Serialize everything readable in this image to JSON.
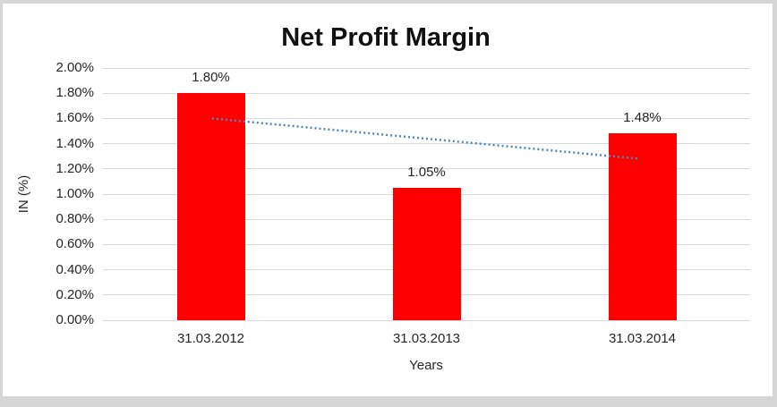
{
  "window": {
    "background": "#ffffff",
    "frame_border_color": "#d6d6d6"
  },
  "chart_data": {
    "type": "bar",
    "title": "Net Profit Margin",
    "xlabel": "Years",
    "ylabel": "IN (%)",
    "categories": [
      "31.03.2012",
      "31.03.2013",
      "31.03.2014"
    ],
    "values": [
      1.8,
      1.05,
      1.48
    ],
    "data_labels": [
      "1.80%",
      "1.05%",
      "1.48%"
    ],
    "ylim": [
      0,
      2.0
    ],
    "ytick_step": 0.2,
    "ytick_labels": [
      "0.00%",
      "0.20%",
      "0.40%",
      "0.60%",
      "0.80%",
      "1.00%",
      "1.20%",
      "1.40%",
      "1.60%",
      "1.80%",
      "2.00%"
    ],
    "grid": true,
    "legend": false,
    "bar_color": "#ff0000",
    "gridline_color": "#d9d9d9",
    "text_color": "#262626",
    "title_color": "#111111",
    "trendline": {
      "type": "linear",
      "style": "dotted",
      "color": "#4e86c4",
      "start_value": 1.6,
      "end_value": 1.28
    }
  }
}
